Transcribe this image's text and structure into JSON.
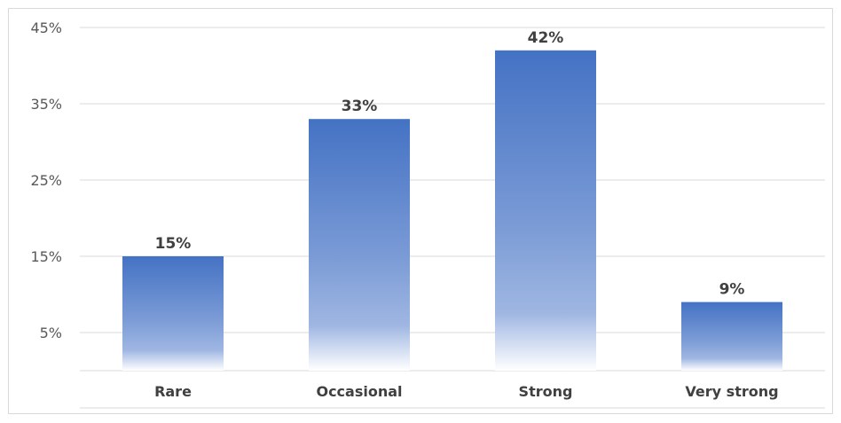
{
  "chart_data": {
    "type": "bar",
    "title": "",
    "xlabel": "",
    "ylabel": "",
    "categories": [
      "Rare",
      "Occasional",
      "Strong",
      "Very strong"
    ],
    "values": [
      15,
      33,
      42,
      9
    ],
    "data_labels": [
      "15%",
      "33%",
      "42%",
      "9%"
    ],
    "y_ticks": [
      5,
      15,
      25,
      35,
      45
    ],
    "y_tick_labels": [
      "5%",
      "15%",
      "25%",
      "35%",
      "45%"
    ],
    "ylim": [
      0,
      45
    ],
    "grid": true,
    "legend": "none",
    "bar_color": "#4472c4",
    "bar_fade_color": "#ffffff"
  }
}
